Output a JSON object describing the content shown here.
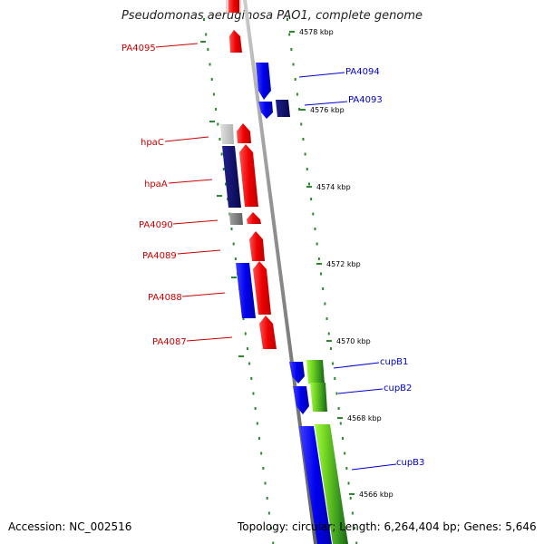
{
  "title": "Pseudomonas aeruginosa PAO1, complete genome",
  "footer": {
    "accession": "Accession: NC_002516",
    "topology": "Topology: circular; Length: 6,264,404 bp; Genes: 5,646"
  },
  "colors": {
    "forward_gene": "#ff0000",
    "reverse_gene": "#0000ff",
    "dark_gene": "#101070",
    "gray_gene": "#808080",
    "left_label": "#cc0000",
    "right_label": "#0000cc",
    "tick_dash": "#2a8a2a",
    "backbone": "#888888",
    "operon_green": "#5cba2c"
  },
  "ticks": [
    "4578 kbp",
    "4576 kbp",
    "4574 kbp",
    "4572 kbp",
    "4570 kbp",
    "4568 kbp",
    "4566 kbp"
  ],
  "labels_left": [
    "PA4095",
    "hpaC",
    "hpaA",
    "PA4090",
    "PA4089",
    "PA4088",
    "PA4087"
  ],
  "labels_right": [
    "PA4094",
    "PA4093",
    "cupB1",
    "cupB2",
    "cupB3"
  ]
}
